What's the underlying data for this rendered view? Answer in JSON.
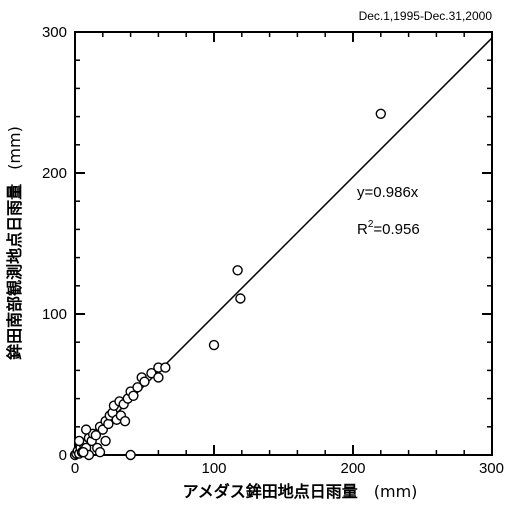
{
  "chart_data": {
    "type": "scatter",
    "period_note": "Dec.1,1995-Dec.31,2000",
    "xlabel_text": "アメダス鉾田地点日雨量",
    "xlabel_unit": "(mm)",
    "ylabel_text": "鉾田南部観測地点日雨量",
    "ylabel_unit": "(mm)",
    "xlim": [
      0,
      300
    ],
    "ylim": [
      0,
      300
    ],
    "x_ticks": [
      0,
      100,
      200,
      300
    ],
    "y_ticks": [
      0,
      100,
      200,
      300
    ],
    "x_minor_step": 20,
    "y_minor_step": 20,
    "fit_slope": 0.986,
    "equation_text": "y=0.986x",
    "r2_prefix": "R",
    "r2_sup": "2",
    "r2_value": "=0.956",
    "points": [
      [
        0,
        0
      ],
      [
        1,
        1
      ],
      [
        2,
        3
      ],
      [
        3,
        1
      ],
      [
        4,
        5
      ],
      [
        5,
        2
      ],
      [
        6,
        8
      ],
      [
        8,
        5
      ],
      [
        10,
        0
      ],
      [
        10,
        12
      ],
      [
        12,
        10
      ],
      [
        13,
        15
      ],
      [
        15,
        14
      ],
      [
        16,
        5
      ],
      [
        18,
        20
      ],
      [
        20,
        18
      ],
      [
        22,
        10
      ],
      [
        22,
        24
      ],
      [
        24,
        22
      ],
      [
        25,
        28
      ],
      [
        27,
        30
      ],
      [
        28,
        35
      ],
      [
        30,
        25
      ],
      [
        32,
        38
      ],
      [
        33,
        28
      ],
      [
        35,
        36
      ],
      [
        36,
        24
      ],
      [
        38,
        40
      ],
      [
        40,
        45
      ],
      [
        42,
        42
      ],
      [
        45,
        48
      ],
      [
        48,
        55
      ],
      [
        50,
        52
      ],
      [
        55,
        58
      ],
      [
        60,
        55
      ],
      [
        60,
        62
      ],
      [
        65,
        62
      ],
      [
        100,
        78
      ],
      [
        117,
        131
      ],
      [
        119,
        111
      ],
      [
        220,
        242
      ],
      [
        3,
        10
      ],
      [
        6,
        2
      ],
      [
        18,
        2
      ],
      [
        40,
        0
      ],
      [
        8,
        18
      ]
    ]
  }
}
